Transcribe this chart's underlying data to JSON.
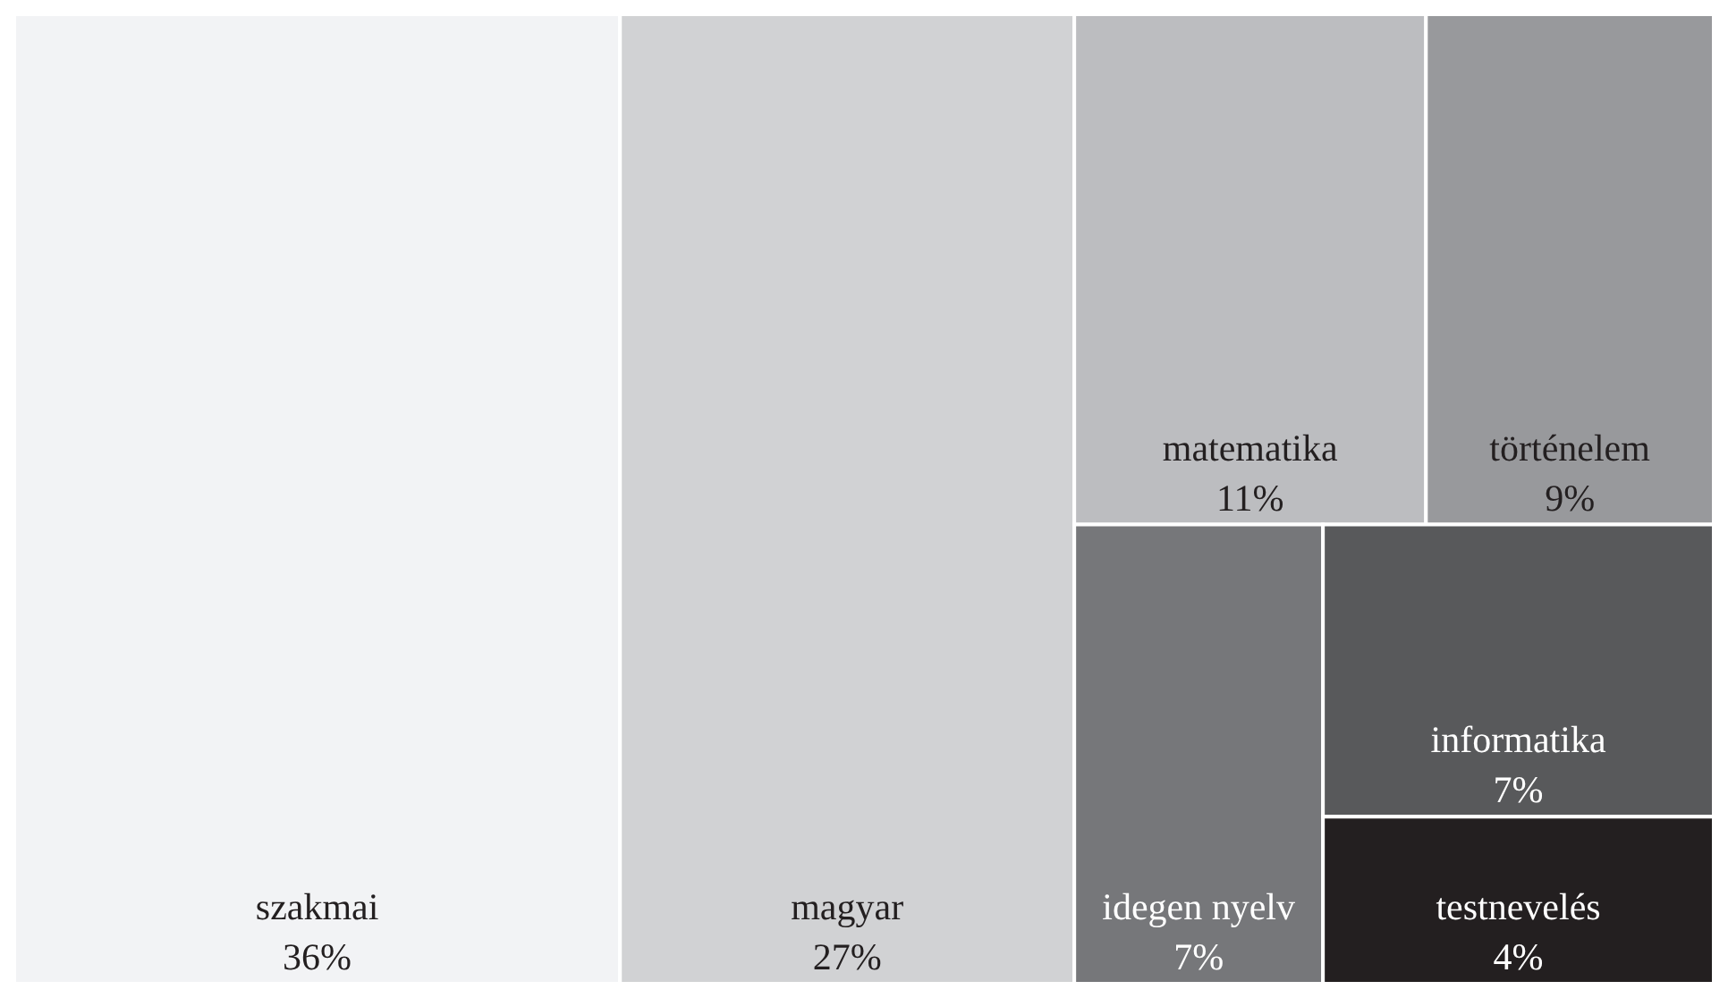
{
  "chart_data": {
    "type": "other",
    "categories": [
      "szakmai",
      "magyar",
      "matematika",
      "történelem",
      "idegen nyelv",
      "informatika",
      "testnevelés"
    ],
    "values": [
      36,
      27,
      11,
      9,
      7,
      7,
      4
    ],
    "value_labels": [
      "36%",
      "27%",
      "11%",
      "9%",
      "7%",
      "7%",
      "4%"
    ],
    "colors": [
      "#f2f3f5",
      "#d1d2d4",
      "#bcbdc0",
      "#98999c",
      "#76777a",
      "#58595b",
      "#231f20"
    ]
  }
}
